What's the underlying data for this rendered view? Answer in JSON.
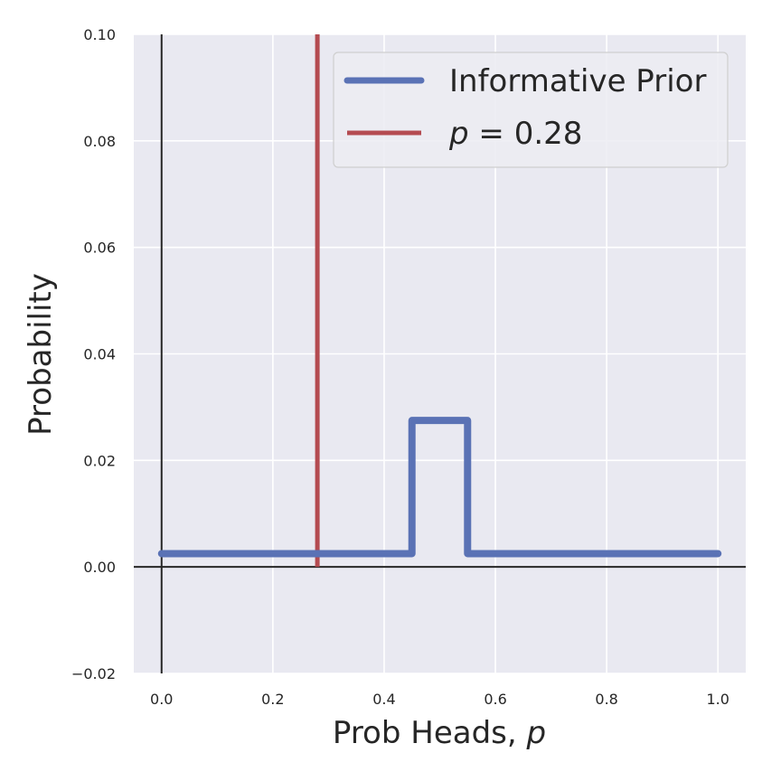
{
  "chart_data": {
    "type": "line",
    "xlabel": "Prob Heads, ",
    "xlabel_var": "p",
    "ylabel": "Probability",
    "xlim": [
      -0.05,
      1.05
    ],
    "ylim": [
      -0.02,
      0.1
    ],
    "grid": true,
    "legend_position": "upper-right",
    "x_ticks": [
      0.0,
      0.2,
      0.4,
      0.6,
      0.8,
      1.0
    ],
    "x_tick_labels": [
      "0.0",
      "0.2",
      "0.4",
      "0.6",
      "0.8",
      "1.0"
    ],
    "y_ticks": [
      -0.02,
      0.0,
      0.02,
      0.04,
      0.06,
      0.08,
      0.1
    ],
    "y_tick_labels": [
      "−0.02",
      "0.00",
      "0.02",
      "0.04",
      "0.06",
      "0.08",
      "0.10"
    ],
    "reference_lines": [
      {
        "orientation": "horizontal",
        "value": 0.0,
        "color": "#262626"
      },
      {
        "orientation": "vertical",
        "value": 0.0,
        "color": "#262626"
      }
    ],
    "series": [
      {
        "name": "Informative Prior",
        "color": "#5a72b5",
        "x": [
          0.0,
          0.45,
          0.45,
          0.55,
          0.55,
          1.0
        ],
        "y": [
          0.0025,
          0.0025,
          0.0275,
          0.0275,
          0.0025,
          0.0025
        ]
      }
    ],
    "vlines": [
      {
        "name_var": "p",
        "name_rest": " = 0.28",
        "x": 0.28,
        "color": "#b44b51"
      }
    ]
  },
  "colors": {
    "plot_background": "#e9e9f1",
    "grid": "#ffffff",
    "legend_background": "#ececf2",
    "legend_border": "#cfcfcf"
  }
}
